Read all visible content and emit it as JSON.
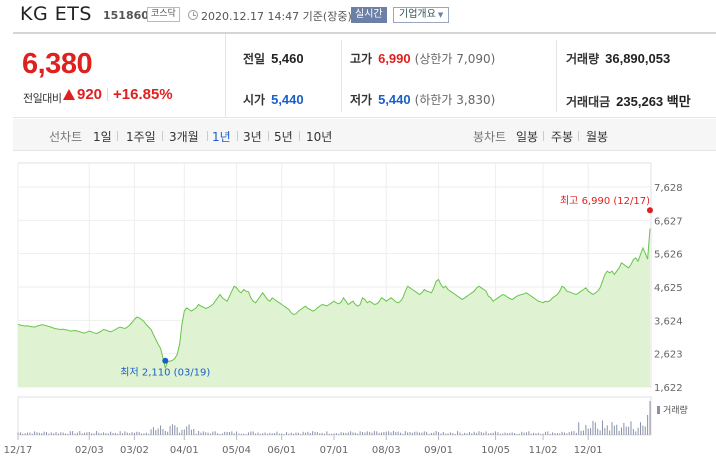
{
  "header": {
    "name": "KG ETS",
    "code": "151860",
    "market_badge": "코스닥",
    "timestamp": "2020.12.17 14:47 기준(장중)",
    "realtime_button": "실시간",
    "company_button": "기업개요"
  },
  "summary": {
    "price": "6,380",
    "change_label": "전일대비",
    "change_value": "920",
    "change_pct": "+16.85%",
    "stats": {
      "prev_close": {
        "label": "전일",
        "value": "5,460"
      },
      "high": {
        "label": "고가",
        "value": "6,990",
        "sub": "(상한가 7,090)"
      },
      "volume": {
        "label": "거래량",
        "value": "36,890,053"
      },
      "open": {
        "label": "시가",
        "value": "5,440"
      },
      "low": {
        "label": "저가",
        "value": "5,440",
        "sub": "(하한가 3,830)"
      },
      "amount": {
        "label": "거래대금",
        "value": "235,263 백만"
      }
    }
  },
  "period_bar": {
    "line_chart_label": "선차트",
    "periods": [
      "1일",
      "1주일",
      "3개월",
      "1년",
      "3년",
      "5년",
      "10년"
    ],
    "active_period": "1년",
    "candle_chart_label": "봉차트",
    "candle_periods": [
      "일봉",
      "주봉",
      "월봉"
    ]
  },
  "colors": {
    "up": "#e01f1f",
    "down": "#1a5fc8",
    "line": "#67c54a",
    "area": "#dff3d3",
    "volume": "#8a91a8"
  },
  "chart_data": {
    "type": "area",
    "ylim": [
      1622,
      7628
    ],
    "y_ticks": [
      "7,628",
      "6,627",
      "5,626",
      "4,625",
      "3,624",
      "2,623",
      "1,622"
    ],
    "x_tick_labels": [
      "12/17",
      "02/03",
      "03/02",
      "04/01",
      "05/04",
      "06/01",
      "07/01",
      "08/03",
      "09/01",
      "10/05",
      "11/02",
      "12/01"
    ],
    "x_tick_index": [
      0,
      30,
      49,
      70,
      92,
      111,
      133,
      155,
      177,
      201,
      221,
      240
    ],
    "series": [
      {
        "values": [
          3500,
          3480,
          3470,
          3450,
          3460,
          3440,
          3430,
          3420,
          3450,
          3470,
          3490,
          3480,
          3460,
          3440,
          3420,
          3390,
          3370,
          3360,
          3350,
          3360,
          3340,
          3330,
          3300,
          3310,
          3320,
          3300,
          3280,
          3260,
          3240,
          3270,
          3300,
          3280,
          3250,
          3230,
          3260,
          3300,
          3350,
          3330,
          3300,
          3280,
          3310,
          3350,
          3390,
          3420,
          3400,
          3380,
          3420,
          3480,
          3560,
          3650,
          3720,
          3700,
          3650,
          3590,
          3500,
          3420,
          3350,
          3200,
          3050,
          2900,
          2780,
          2500,
          2200,
          2380,
          2400,
          2420,
          2480,
          2600,
          2900,
          3500,
          3900,
          4000,
          3950,
          3900,
          3950,
          4000,
          4100,
          4050,
          4020,
          3980,
          4010,
          4050,
          4100,
          4200,
          4300,
          4400,
          4300,
          4250,
          4200,
          4350,
          4500,
          4650,
          4600,
          4500,
          4450,
          4550,
          4500,
          4480,
          4300,
          4200,
          4150,
          4250,
          4350,
          4450,
          4350,
          4250,
          4200,
          4300,
          4250,
          4200,
          4150,
          4100,
          4050,
          4000,
          3950,
          3850,
          3800,
          3820,
          3900,
          3950,
          4000,
          4050,
          3980,
          3950,
          3900,
          3930,
          4000,
          4050,
          4100,
          4080,
          4060,
          4100,
          4150,
          4200,
          4150,
          4120,
          4170,
          4300,
          4200,
          4100,
          4150,
          4200,
          4100,
          4050,
          4100,
          4300,
          4250,
          4150,
          4200,
          4150,
          4100,
          4120,
          4180,
          4300,
          4260,
          4200,
          4250,
          4300,
          4250,
          4180,
          4150,
          4200,
          4300,
          4500,
          4650,
          4600,
          4550,
          4500,
          4450,
          4400,
          4450,
          4550,
          4500,
          4480,
          4450,
          4600,
          4800,
          4850,
          4700,
          4600,
          4650,
          4550,
          4500,
          4450,
          4400,
          4350,
          4300,
          4250,
          4300,
          4350,
          4400,
          4450,
          4500,
          4600,
          4650,
          4600,
          4550,
          4500,
          4350,
          4300,
          4200,
          4250,
          4300,
          4350,
          4400,
          4380,
          4320,
          4280,
          4250,
          4300,
          4350,
          4380,
          4400,
          4420,
          4450,
          4400,
          4350,
          4300,
          4250,
          4200,
          4180,
          4150,
          4200,
          4180,
          4220,
          4300,
          4350,
          4400,
          4500,
          4650,
          4600,
          4500,
          4480,
          4450,
          4420,
          4400,
          4450,
          4500,
          4550,
          4600,
          4500,
          4450,
          4400,
          4450,
          4500,
          4600,
          4800,
          5000,
          5100,
          5050,
          5100,
          5000,
          5100,
          5200,
          5350,
          5300,
          5250,
          5200,
          5300,
          5450,
          5500,
          5400,
          5600,
          5800,
          5650,
          5460,
          6380
        ]
      }
    ],
    "max_marker": {
      "label": "최고 6,990 (12/17)",
      "value": 6990
    },
    "min_marker": {
      "label": "최저 2,110 (03/19)",
      "value": 2110,
      "index": 62
    },
    "volume_label": "거래량"
  }
}
